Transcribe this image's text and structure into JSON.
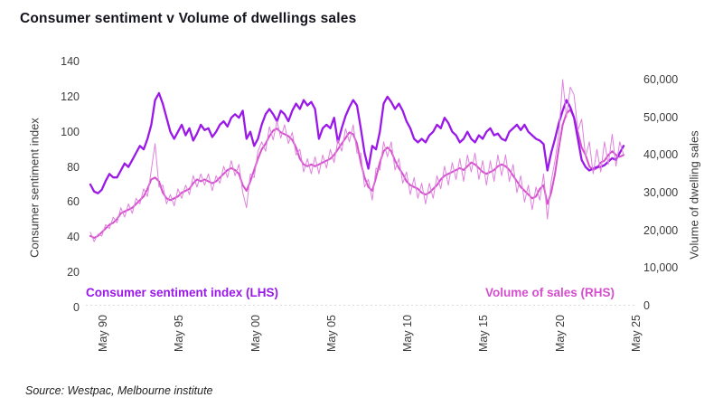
{
  "title": "Consumer sentiment v Volume of dwellings sales",
  "source": "Source: Westpac, Melbourne institute",
  "colors": {
    "title_text": "#14141e",
    "axis_text": "#3c3c3c",
    "sentiment": "#9a18e8",
    "volume_trend": "#d54fce",
    "volume_raw": "#df82de",
    "baseline": "#d9d9d9"
  },
  "legend": [
    {
      "label": "Consumer sentiment index (LHS)",
      "color": "#9a18e8"
    },
    {
      "label": "Volume of sales (RHS)",
      "color": "#d54fce"
    }
  ],
  "chart_data": {
    "type": "line",
    "title": "Consumer sentiment v Volume of dwellings sales",
    "x_start": 1990.33,
    "x_step": 0.25,
    "x_end": 2025.33,
    "grid": false,
    "legend_position": "bottom-inside",
    "x_axis": {
      "tick_labels": [
        "May 90",
        "May 95",
        "May 00",
        "May 05",
        "May 10",
        "May 15",
        "May 20",
        "May 25"
      ],
      "tick_years": [
        1990.33,
        1995.33,
        2000.33,
        2005.33,
        2010.33,
        2015.33,
        2020.33,
        2025.33
      ]
    },
    "left_axis": {
      "label": "Consumer sentiment index",
      "min": 0,
      "max": 140,
      "tick_values": [
        0,
        20,
        40,
        60,
        80,
        100,
        120,
        140
      ],
      "tick_labels": [
        "0",
        "20",
        "40",
        "60",
        "80",
        "100",
        "120",
        "140"
      ]
    },
    "right_axis": {
      "label": "Volume of dwelling sales",
      "min": 0,
      "max": 60000,
      "tick_values": [
        0,
        10000,
        20000,
        30000,
        40000,
        50000,
        60000
      ],
      "tick_labels": [
        "0",
        "10,000",
        "20,000",
        "30,000",
        "40,000",
        "50,000",
        "60,000"
      ]
    },
    "series": [
      {
        "name": "Consumer sentiment index (LHS)",
        "axis": "left",
        "color": "#9a18e8",
        "width": 2.3,
        "values": [
          70,
          66,
          65,
          67,
          72,
          76,
          74,
          74,
          78,
          82,
          80,
          84,
          88,
          92,
          90,
          96,
          104,
          118,
          122,
          116,
          108,
          100,
          96,
          100,
          104,
          98,
          102,
          95,
          99,
          104,
          101,
          102,
          97,
          100,
          104,
          106,
          103,
          108,
          110,
          108,
          112,
          96,
          100,
          92,
          96,
          104,
          110,
          113,
          110,
          106,
          112,
          110,
          106,
          112,
          116,
          113,
          118,
          115,
          117,
          113,
          96,
          102,
          104,
          102,
          108,
          94,
          102,
          109,
          114,
          118,
          115,
          102,
          88,
          79,
          92,
          90,
          100,
          116,
          120,
          117,
          113,
          116,
          112,
          106,
          102,
          96,
          94,
          96,
          94,
          98,
          100,
          104,
          102,
          108,
          105,
          100,
          98,
          94,
          96,
          100,
          96,
          94,
          98,
          96,
          100,
          102,
          98,
          99,
          96,
          95,
          100,
          102,
          104,
          101,
          104,
          100,
          98,
          96,
          95,
          93,
          78,
          88,
          96,
          105,
          112,
          118,
          114,
          108,
          96,
          84,
          80,
          78,
          79,
          80,
          80,
          81,
          83,
          85,
          84,
          88,
          92
        ]
      },
      {
        "name": "Volume of sales (RHS) raw monthly",
        "axis": "right",
        "color": "#df82de",
        "width": 1,
        "values": [
          19500,
          17000,
          19000,
          18500,
          21500,
          20500,
          23500,
          22000,
          26000,
          23500,
          27000,
          24500,
          28500,
          27000,
          31000,
          29000,
          36000,
          43000,
          31500,
          32000,
          27000,
          29500,
          26500,
          31000,
          28500,
          32000,
          29500,
          34500,
          31500,
          35000,
          32000,
          35000,
          30500,
          34500,
          32500,
          37000,
          34000,
          38500,
          34500,
          37500,
          30000,
          26000,
          35000,
          34000,
          41000,
          43500,
          41000,
          47500,
          44000,
          49000,
          44500,
          48000,
          43000,
          46000,
          40000,
          41500,
          35500,
          39000,
          35000,
          39500,
          35000,
          40000,
          36500,
          41500,
          38000,
          44000,
          41000,
          47000,
          43500,
          48000,
          40500,
          40500,
          31500,
          33500,
          28000,
          36500,
          36000,
          43500,
          39500,
          43500,
          36000,
          39000,
          32500,
          35500,
          29500,
          34000,
          28500,
          32500,
          27000,
          32500,
          28500,
          34500,
          31000,
          37000,
          32000,
          38000,
          33500,
          39000,
          33000,
          40000,
          35500,
          40500,
          33500,
          38500,
          32000,
          38500,
          33000,
          40000,
          34500,
          40000,
          33000,
          37500,
          30000,
          34500,
          27500,
          32000,
          25500,
          31500,
          28000,
          35000,
          23000,
          33000,
          38500,
          45500,
          60000,
          50000,
          58000,
          56000,
          46500,
          49500,
          39500,
          43500,
          35000,
          41500,
          35500,
          43500,
          37500,
          45500,
          37000,
          43500,
          40000
        ]
      },
      {
        "name": "Volume of sales (RHS) trend",
        "axis": "right",
        "color": "#d54fce",
        "width": 2,
        "values": [
          18500,
          18000,
          18500,
          19500,
          20500,
          21500,
          22000,
          23000,
          24500,
          25000,
          25500,
          26000,
          27000,
          28000,
          29000,
          31000,
          33500,
          34000,
          33000,
          30000,
          28500,
          28000,
          28500,
          29000,
          30000,
          30500,
          31000,
          32500,
          33500,
          33000,
          33500,
          33000,
          32500,
          33000,
          34000,
          35000,
          36000,
          36500,
          36000,
          35000,
          32000,
          30500,
          33000,
          36000,
          39000,
          41500,
          43000,
          45000,
          46500,
          47000,
          46000,
          45500,
          45000,
          44000,
          42000,
          39000,
          37500,
          37000,
          37500,
          37000,
          37500,
          38000,
          38500,
          39000,
          40000,
          41500,
          43000,
          44500,
          46000,
          45500,
          43000,
          38000,
          34000,
          31500,
          30500,
          34000,
          38000,
          41000,
          42000,
          41000,
          38500,
          36500,
          35000,
          33000,
          32000,
          31500,
          31000,
          30000,
          29500,
          30000,
          31000,
          32000,
          33500,
          34500,
          35000,
          35500,
          36000,
          36500,
          36000,
          37000,
          38000,
          37500,
          36500,
          35500,
          35000,
          35500,
          36000,
          37000,
          37500,
          37000,
          36000,
          34500,
          33000,
          31500,
          30500,
          29500,
          28500,
          29000,
          31000,
          32000,
          27000,
          30000,
          35000,
          42000,
          48000,
          51000,
          52000,
          50000,
          46000,
          42000,
          40000,
          37000,
          36000,
          36500,
          38000,
          38500,
          40000,
          41000,
          40000,
          39500,
          40000
        ]
      }
    ]
  }
}
